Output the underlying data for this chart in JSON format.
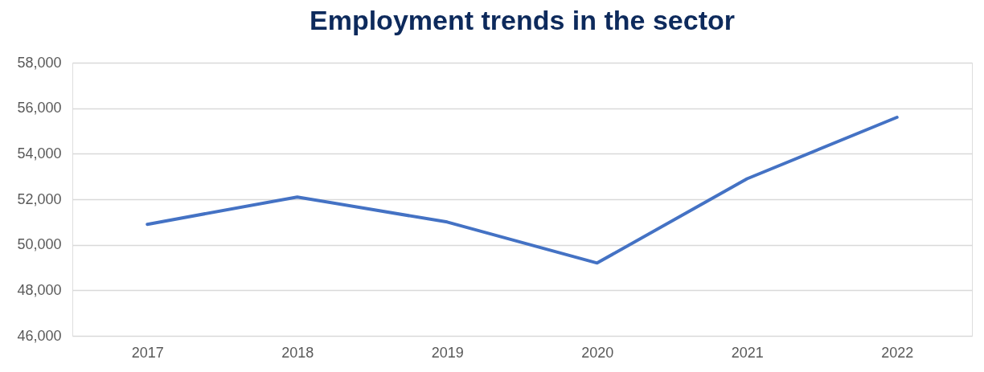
{
  "chart_data": {
    "type": "line",
    "title": "Employment trends in the sector",
    "categories": [
      "2017",
      "2018",
      "2019",
      "2020",
      "2021",
      "2022"
    ],
    "series": [
      {
        "color": "#4472c4",
        "values": [
          50900,
          52100,
          51000,
          49200,
          52900,
          55600
        ]
      }
    ],
    "ylim": [
      46000,
      58000
    ],
    "yticks": [
      {
        "value": 46000,
        "label": "46,000"
      },
      {
        "value": 48000,
        "label": "48,000"
      },
      {
        "value": 50000,
        "label": "50,000"
      },
      {
        "value": 52000,
        "label": "52,000"
      },
      {
        "value": 54000,
        "label": "54,000"
      },
      {
        "value": 56000,
        "label": "56,000"
      },
      {
        "value": 58000,
        "label": "58,000"
      }
    ],
    "grid": "y",
    "marker": "none",
    "line_style": "solid"
  }
}
